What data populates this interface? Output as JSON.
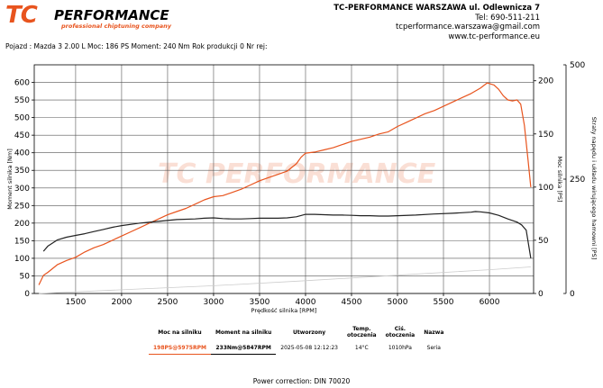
{
  "logo": {
    "main": "TC",
    "perf": "PERFORMANCE",
    "tagline": "professional chiptuning company"
  },
  "company": {
    "name": "TC-PERFORMANCE WARSZAWA ul. Odlewnicza 7",
    "phone": "Tel: 690-511-211",
    "email": "tcperformance.warszawa@gmail.com",
    "web": "www.tc-performance.eu"
  },
  "vehicle": "Pojazd : Mazda 3 2.00 L Moc: 186 PS Moment: 240 Nm Rok produkcji 0 Nr rej:",
  "colors": {
    "accent": "#e8541e",
    "torque": "#222222",
    "losses": "#cccccc",
    "grid": "#444444"
  },
  "chart_data": {
    "type": "line",
    "xlabel": "Prędkość silnika [RPM]",
    "ylabel_left": "Moment silnika [Nm]",
    "ylabel_right": "Moc silnika [PS]",
    "ylabel_right2": "Straty napędu i układu wirującego hamowni [PS]",
    "watermark": "TC PERFORMANCE",
    "xlim": [
      1050,
      6480
    ],
    "x_ticks": [
      1500,
      2000,
      2500,
      3000,
      3500,
      4000,
      4500,
      5000,
      5500,
      6000
    ],
    "ylim_left": [
      0,
      650
    ],
    "y_ticks_left": [
      0,
      50,
      100,
      150,
      200,
      250,
      300,
      350,
      400,
      450,
      500,
      550,
      600
    ],
    "ylim_right": [
      0,
      215
    ],
    "y_ticks_right": [
      0,
      50,
      100,
      150,
      200
    ],
    "ylim_right2": [
      0,
      500
    ],
    "y_ticks_right2": [
      0,
      250,
      500
    ],
    "series": [
      {
        "name": "Moc silnika [PS]",
        "axis": "right",
        "color": "#e8541e",
        "x": [
          1100,
          1150,
          1200,
          1300,
          1400,
          1500,
          1600,
          1700,
          1800,
          1900,
          2000,
          2100,
          2200,
          2300,
          2400,
          2500,
          2600,
          2700,
          2800,
          2900,
          3000,
          3100,
          3200,
          3300,
          3400,
          3500,
          3600,
          3700,
          3800,
          3900,
          3950,
          4000,
          4100,
          4200,
          4300,
          4400,
          4500,
          4600,
          4700,
          4800,
          4900,
          5000,
          5100,
          5200,
          5300,
          5400,
          5500,
          5600,
          5700,
          5800,
          5900,
          5975,
          6050,
          6100,
          6150,
          6200,
          6250,
          6300,
          6340,
          6380,
          6420,
          6450
        ],
        "values": [
          8,
          17,
          20,
          27,
          31,
          34,
          39,
          43,
          46,
          50,
          54,
          58,
          62,
          66,
          70,
          74,
          77,
          80,
          84,
          88,
          91,
          92,
          95,
          98,
          102,
          106,
          109,
          112,
          115,
          122,
          128,
          132,
          133,
          135,
          137,
          140,
          143,
          145,
          147,
          150,
          152,
          157,
          161,
          165,
          169,
          172,
          176,
          180,
          184,
          188,
          193,
          198,
          196,
          192,
          186,
          182,
          181,
          182,
          178,
          158,
          125,
          100
        ]
      },
      {
        "name": "Moment silnika [Nm]",
        "axis": "left",
        "color": "#222222",
        "x": [
          1150,
          1200,
          1300,
          1400,
          1500,
          1600,
          1700,
          1800,
          1900,
          2000,
          2200,
          2400,
          2600,
          2800,
          2900,
          3000,
          3100,
          3200,
          3300,
          3400,
          3500,
          3600,
          3700,
          3800,
          3900,
          4000,
          4100,
          4200,
          4300,
          4400,
          4500,
          4600,
          4700,
          4800,
          4900,
          5000,
          5200,
          5400,
          5600,
          5800,
          5847,
          5900,
          6000,
          6100,
          6200,
          6300,
          6350,
          6400,
          6450
        ],
        "values": [
          120,
          135,
          152,
          160,
          165,
          170,
          176,
          182,
          188,
          193,
          200,
          205,
          210,
          212,
          214,
          215,
          213,
          212,
          212,
          213,
          214,
          214,
          214,
          215,
          218,
          225,
          225,
          224,
          223,
          223,
          222,
          221,
          221,
          220,
          220,
          221,
          223,
          226,
          228,
          231,
          233,
          232,
          229,
          222,
          212,
          203,
          195,
          180,
          100
        ]
      },
      {
        "name": "Straty [PS]",
        "axis": "right2",
        "color": "#cccccc",
        "x": [
          1100,
          2000,
          3000,
          4000,
          5000,
          6000,
          6450
        ],
        "values": [
          0,
          8,
          17,
          28,
          40,
          52,
          58
        ]
      }
    ]
  },
  "results": {
    "headers": [
      "Moc na silniku",
      "Moment na silniku",
      "Utworzony",
      "Temp. otoczenia",
      "Ciś. otoczenia",
      "Nazwa"
    ],
    "power": "198PS@5975RPM",
    "torque": "233Nm@5847RPM",
    "created": "2025-05-08 12:12:23",
    "temp": "14°C",
    "pressure": "1010hPa",
    "name": "Seria"
  },
  "footer": "Power correction: DIN 70020"
}
